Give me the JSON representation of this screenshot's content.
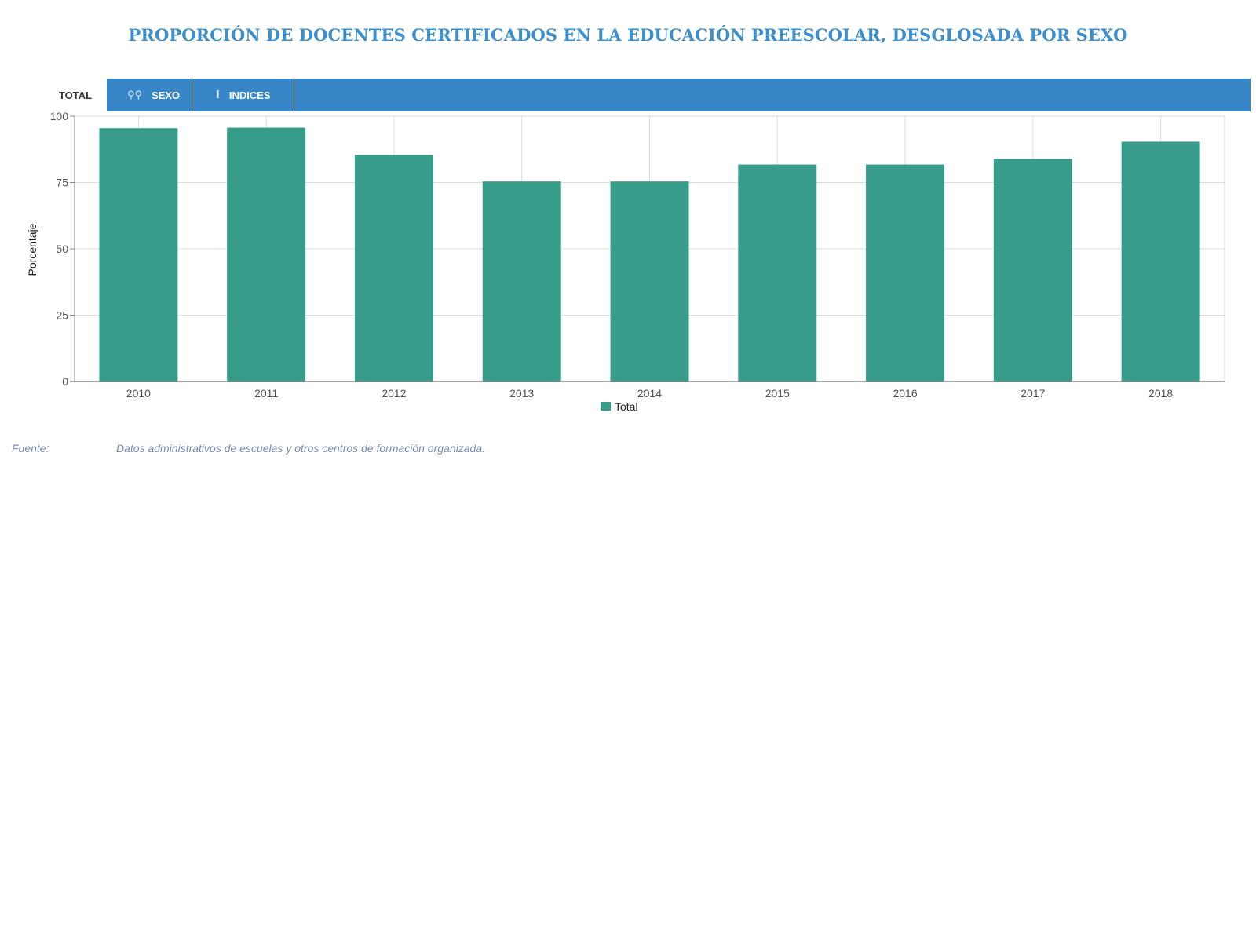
{
  "title": "PROPORCIÓN DE DOCENTES CERTIFICADOS EN LA EDUCACIÓN PREESCOLAR, DESGLOSADA POR SEXO",
  "tabs": {
    "total": "TOTAL",
    "sexo": "SEXO",
    "indices": "INDICES",
    "sexo_icon": "gender-icon",
    "indices_icon": "index-icon"
  },
  "source": {
    "label": "Fuente:",
    "text": "Datos administrativos de escuelas y otros centros de formación organizada."
  },
  "colors": {
    "title": "#3c8fcc",
    "tab_strip": "#3886c8",
    "bar": "#389c8b",
    "source": "#7a8bb3"
  },
  "chart_data": {
    "type": "bar",
    "categories": [
      "2010",
      "2011",
      "2012",
      "2013",
      "2014",
      "2015",
      "2016",
      "2017",
      "2018"
    ],
    "series": [
      {
        "name": "Total",
        "values": [
          95.5,
          95.7,
          85.4,
          75.4,
          75.4,
          81.8,
          81.8,
          83.9,
          90.4
        ]
      }
    ],
    "ylabel": "Porcentaje",
    "xlabel": "",
    "ylim": [
      0,
      100
    ],
    "yticks": [
      0,
      25,
      50,
      75,
      100
    ],
    "grid": true,
    "legend": "bottom-center"
  }
}
